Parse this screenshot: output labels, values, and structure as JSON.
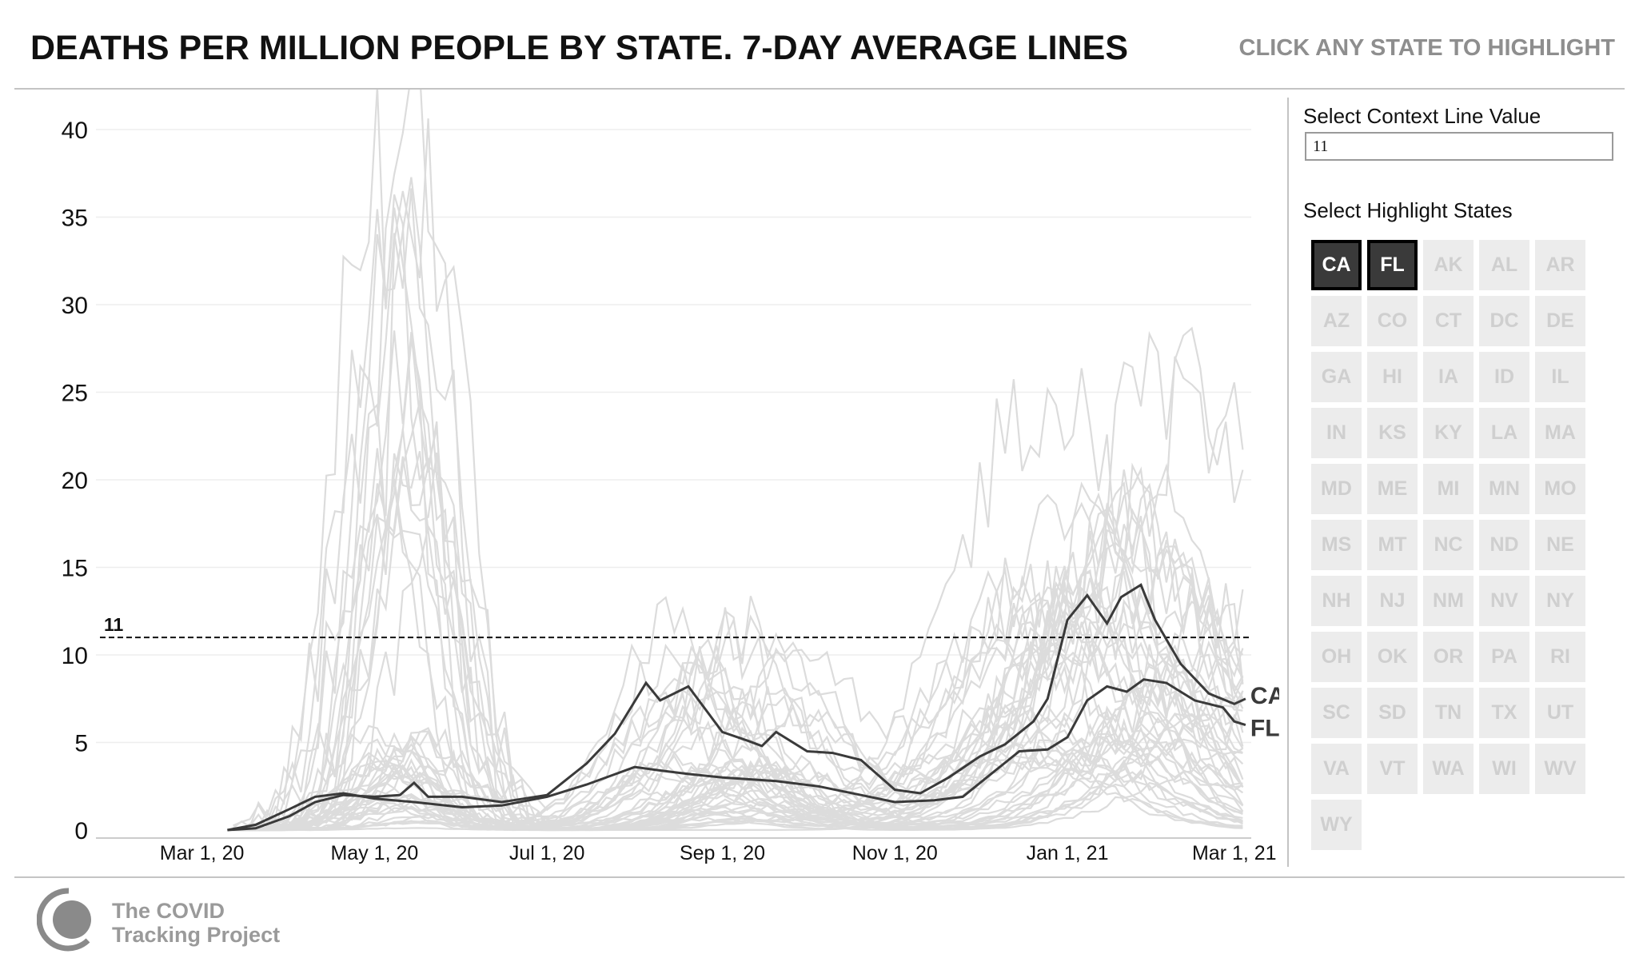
{
  "header": {
    "title": "DEATHS PER MILLION PEOPLE BY STATE. 7-DAY AVERAGE LINES",
    "hint": "CLICK ANY STATE TO HIGHLIGHT"
  },
  "controls": {
    "context_label": "Select Context Line Value",
    "context_value": "11",
    "states_label": "Select Highlight States",
    "states": [
      "CA",
      "FL",
      "AK",
      "AL",
      "AR",
      "AZ",
      "CO",
      "CT",
      "DC",
      "DE",
      "GA",
      "HI",
      "IA",
      "ID",
      "IL",
      "IN",
      "KS",
      "KY",
      "LA",
      "MA",
      "MD",
      "ME",
      "MI",
      "MN",
      "MO",
      "MS",
      "MT",
      "NC",
      "ND",
      "NE",
      "NH",
      "NJ",
      "NM",
      "NV",
      "NY",
      "OH",
      "OK",
      "OR",
      "PA",
      "RI",
      "SC",
      "SD",
      "TN",
      "TX",
      "UT",
      "VA",
      "VT",
      "WA",
      "WI",
      "WV",
      "WY"
    ],
    "highlighted": [
      "CA",
      "FL"
    ]
  },
  "branding": {
    "line1": "The COVID",
    "line2": "Tracking Project"
  },
  "colors": {
    "highlight": "#3a3a3a",
    "context": "#dcdcdc",
    "button_bg": "#ececec",
    "button_text": "#cfcfcf",
    "hint": "#8e8e8e"
  },
  "chart_data": {
    "type": "line",
    "title": "DEATHS PER MILLION PEOPLE BY STATE. 7-DAY AVERAGE LINES",
    "xlabel": "",
    "ylabel": "",
    "x_ticks": [
      "Mar 1, 20",
      "May 1, 20",
      "Jul 1, 20",
      "Sep 1, 20",
      "Nov 1, 20",
      "Jan 1, 21",
      "Mar 1, 21"
    ],
    "y_ticks": [
      0,
      5,
      10,
      15,
      20,
      25,
      30,
      35,
      40
    ],
    "xlim": [
      "2020-02-01",
      "2021-03-07"
    ],
    "ylim": [
      0,
      40
    ],
    "grid": "horizontal",
    "reference_line": {
      "value": 11,
      "label": "11",
      "style": "dashed"
    },
    "series": [
      {
        "name": "CA",
        "highlighted": true,
        "points": [
          [
            "2020-03-10",
            0
          ],
          [
            "2020-03-20",
            0.1
          ],
          [
            "2020-04-01",
            0.8
          ],
          [
            "2020-04-10",
            1.6
          ],
          [
            "2020-04-20",
            2.0
          ],
          [
            "2020-05-01",
            1.9
          ],
          [
            "2020-05-10",
            2.0
          ],
          [
            "2020-05-15",
            2.7
          ],
          [
            "2020-05-20",
            1.9
          ],
          [
            "2020-06-01",
            1.9
          ],
          [
            "2020-06-15",
            1.6
          ],
          [
            "2020-07-01",
            2.0
          ],
          [
            "2020-07-15",
            3.8
          ],
          [
            "2020-07-25",
            5.5
          ],
          [
            "2020-08-05",
            8.4
          ],
          [
            "2020-08-10",
            7.4
          ],
          [
            "2020-08-20",
            8.2
          ],
          [
            "2020-09-01",
            5.6
          ],
          [
            "2020-09-10",
            5.1
          ],
          [
            "2020-09-15",
            4.8
          ],
          [
            "2020-09-20",
            5.6
          ],
          [
            "2020-10-01",
            4.5
          ],
          [
            "2020-10-10",
            4.4
          ],
          [
            "2020-10-20",
            4.0
          ],
          [
            "2020-11-01",
            2.3
          ],
          [
            "2020-11-10",
            2.1
          ],
          [
            "2020-11-20",
            3.0
          ],
          [
            "2020-12-01",
            4.2
          ],
          [
            "2020-12-10",
            4.9
          ],
          [
            "2020-12-20",
            6.2
          ],
          [
            "2020-12-25",
            7.5
          ],
          [
            "2021-01-01",
            12.0
          ],
          [
            "2021-01-08",
            13.4
          ],
          [
            "2021-01-15",
            11.8
          ],
          [
            "2021-01-20",
            13.3
          ],
          [
            "2021-01-27",
            14.0
          ],
          [
            "2021-02-01",
            12.0
          ],
          [
            "2021-02-10",
            9.5
          ],
          [
            "2021-02-20",
            7.8
          ],
          [
            "2021-03-01",
            7.2
          ],
          [
            "2021-03-05",
            7.5
          ]
        ]
      },
      {
        "name": "FL",
        "highlighted": true,
        "points": [
          [
            "2020-03-10",
            0
          ],
          [
            "2020-03-20",
            0.3
          ],
          [
            "2020-04-01",
            1.2
          ],
          [
            "2020-04-10",
            1.9
          ],
          [
            "2020-04-20",
            2.1
          ],
          [
            "2020-05-01",
            1.8
          ],
          [
            "2020-05-15",
            1.6
          ],
          [
            "2020-06-01",
            1.3
          ],
          [
            "2020-06-15",
            1.4
          ],
          [
            "2020-07-01",
            1.9
          ],
          [
            "2020-07-15",
            2.6
          ],
          [
            "2020-08-01",
            3.6
          ],
          [
            "2020-08-10",
            3.4
          ],
          [
            "2020-08-20",
            3.2
          ],
          [
            "2020-09-01",
            3.0
          ],
          [
            "2020-09-20",
            2.8
          ],
          [
            "2020-10-05",
            2.5
          ],
          [
            "2020-10-20",
            2.0
          ],
          [
            "2020-11-01",
            1.6
          ],
          [
            "2020-11-15",
            1.7
          ],
          [
            "2020-11-25",
            1.9
          ],
          [
            "2020-12-05",
            3.2
          ],
          [
            "2020-12-15",
            4.5
          ],
          [
            "2020-12-25",
            4.6
          ],
          [
            "2021-01-01",
            5.3
          ],
          [
            "2021-01-08",
            7.4
          ],
          [
            "2021-01-15",
            8.2
          ],
          [
            "2021-01-22",
            7.9
          ],
          [
            "2021-01-28",
            8.6
          ],
          [
            "2021-02-05",
            8.4
          ],
          [
            "2021-02-15",
            7.4
          ],
          [
            "2021-02-25",
            7.0
          ],
          [
            "2021-03-01",
            6.2
          ],
          [
            "2021-03-05",
            6.0
          ]
        ]
      }
    ],
    "context_series_count": 49
  }
}
